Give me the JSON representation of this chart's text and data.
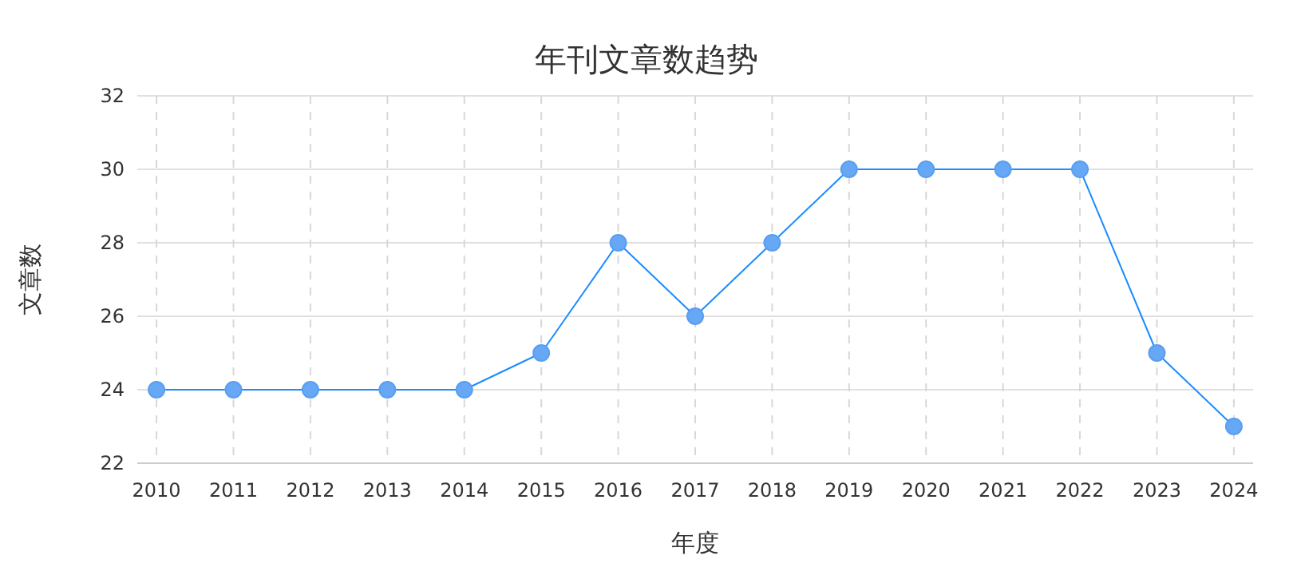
{
  "chart_data": {
    "type": "line",
    "title": "年刊文章数趋势",
    "xlabel": "年度",
    "ylabel": "文章数",
    "categories": [
      "2010",
      "2011",
      "2012",
      "2013",
      "2014",
      "2015",
      "2016",
      "2017",
      "2018",
      "2019",
      "2020",
      "2021",
      "2022",
      "2023",
      "2024"
    ],
    "series": [
      {
        "color": "#1a8cff",
        "values": [
          24,
          24,
          24,
          24,
          24,
          25,
          28,
          26,
          28,
          30,
          30,
          30,
          30,
          25,
          23
        ]
      }
    ],
    "ylim": [
      22,
      32
    ],
    "yticks": [
      22,
      24,
      26,
      28,
      30,
      32
    ],
    "grid": true,
    "marker": "circle",
    "line_style": "solid"
  }
}
